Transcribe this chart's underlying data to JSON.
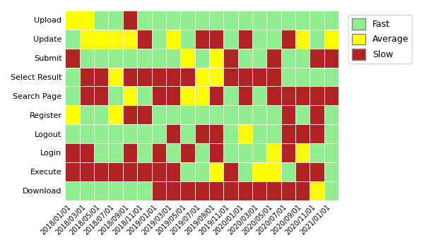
{
  "rows": [
    "Upload",
    "Update",
    "Submit",
    "Select Result",
    "Search Page",
    "Register",
    "Logout",
    "Login",
    "Execute",
    "Download"
  ],
  "cols": [
    "2018/01/01",
    "2018/03/01",
    "2018/05/01",
    "2018/07/01",
    "2018/09/01",
    "2018/11/01",
    "2019/01/01",
    "2019/03/01",
    "2019/05/01",
    "2019/07/01",
    "2019/09/01",
    "2019/11/01",
    "2020/01/01",
    "2020/03/01",
    "2020/05/01",
    "2020/07/01",
    "2020/09/01",
    "2020/11/01",
    "2021/01/01"
  ],
  "color_map": [
    "#90EE90",
    "#FFFF00",
    "#B22222"
  ],
  "legend_colors": {
    "Fast": "#90EE90",
    "Average": "#FFFF00",
    "Slow": "#B22222"
  },
  "grid": [
    [
      1,
      1,
      0,
      0,
      2,
      0,
      0,
      0,
      0,
      0,
      0,
      0,
      0,
      0,
      0,
      0,
      0,
      0,
      0
    ],
    [
      0,
      1,
      1,
      1,
      1,
      2,
      0,
      1,
      0,
      2,
      2,
      0,
      2,
      0,
      0,
      2,
      1,
      0,
      1
    ],
    [
      2,
      0,
      0,
      0,
      0,
      0,
      0,
      0,
      1,
      0,
      1,
      2,
      0,
      0,
      2,
      0,
      0,
      2,
      2
    ],
    [
      0,
      2,
      2,
      1,
      2,
      2,
      2,
      2,
      2,
      1,
      1,
      2,
      2,
      2,
      2,
      0,
      0,
      0,
      0
    ],
    [
      0,
      2,
      2,
      0,
      1,
      0,
      2,
      2,
      1,
      1,
      2,
      0,
      2,
      0,
      2,
      2,
      2,
      2,
      2
    ],
    [
      1,
      0,
      0,
      1,
      2,
      2,
      0,
      0,
      0,
      0,
      0,
      0,
      0,
      0,
      0,
      2,
      0,
      2,
      0
    ],
    [
      0,
      0,
      0,
      0,
      0,
      0,
      0,
      2,
      0,
      2,
      2,
      0,
      1,
      0,
      0,
      2,
      2,
      2,
      0
    ],
    [
      2,
      2,
      0,
      0,
      2,
      0,
      2,
      0,
      2,
      0,
      2,
      0,
      0,
      0,
      1,
      2,
      1,
      0,
      0
    ],
    [
      2,
      2,
      2,
      2,
      2,
      2,
      2,
      2,
      0,
      0,
      1,
      2,
      0,
      1,
      1,
      0,
      2,
      2,
      0
    ],
    [
      0,
      0,
      0,
      0,
      0,
      0,
      2,
      2,
      2,
      2,
      2,
      2,
      2,
      2,
      2,
      2,
      2,
      1,
      0
    ]
  ],
  "figsize": [
    6.0,
    3.5
  ],
  "dpi": 100
}
